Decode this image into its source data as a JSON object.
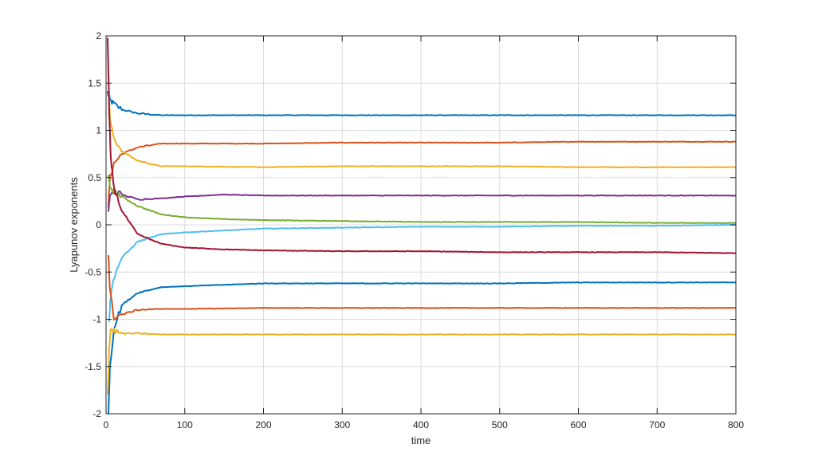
{
  "chart_data": {
    "type": "line",
    "title": "",
    "xlabel": "time",
    "ylabel": "Lyapunov exponents",
    "xlim": [
      0,
      800
    ],
    "ylim": [
      -2,
      2
    ],
    "xticks": [
      0,
      100,
      200,
      300,
      400,
      500,
      600,
      700,
      800
    ],
    "xtick_labels": [
      "0",
      "100",
      "200",
      "300",
      "400",
      "500",
      "600",
      "700",
      "800"
    ],
    "yticks": [
      -2,
      -1.5,
      -1,
      -0.5,
      0,
      0.5,
      1,
      1.5,
      2
    ],
    "ytick_labels": [
      "-2",
      "-1.5",
      "-1",
      "-0.5",
      "0",
      "0.5",
      "1",
      "1.5",
      "2"
    ],
    "grid": true,
    "legend": "none",
    "series": [
      {
        "color": "#0072bd",
        "x": [
          2,
          5,
          10,
          20,
          40,
          70,
          100,
          200,
          300,
          400,
          500,
          600,
          700,
          800
        ],
        "y": [
          1.4,
          1.32,
          1.28,
          1.22,
          1.18,
          1.16,
          1.16,
          1.16,
          1.16,
          1.16,
          1.16,
          1.16,
          1.16,
          1.16
        ]
      },
      {
        "color": "#d95319",
        "x": [
          3,
          5,
          10,
          20,
          40,
          70,
          100,
          200,
          300,
          400,
          500,
          600,
          700,
          800
        ],
        "y": [
          0.2,
          0.5,
          0.65,
          0.75,
          0.82,
          0.86,
          0.86,
          0.86,
          0.87,
          0.87,
          0.87,
          0.88,
          0.88,
          0.88
        ]
      },
      {
        "color": "#edb120",
        "x": [
          3,
          5,
          10,
          20,
          40,
          70,
          100,
          200,
          300,
          400,
          500,
          600,
          700,
          800
        ],
        "y": [
          1.6,
          1.1,
          0.92,
          0.78,
          0.68,
          0.62,
          0.62,
          0.61,
          0.62,
          0.62,
          0.62,
          0.61,
          0.61,
          0.61
        ]
      },
      {
        "color": "#7e2f8e",
        "x": [
          3,
          5,
          10,
          20,
          40,
          70,
          100,
          150,
          200,
          300,
          400,
          500,
          600,
          700,
          800
        ],
        "y": [
          0.15,
          0.3,
          0.35,
          0.32,
          0.27,
          0.28,
          0.3,
          0.32,
          0.31,
          0.31,
          0.31,
          0.31,
          0.31,
          0.31,
          0.31
        ]
      },
      {
        "color": "#77ac30",
        "x": [
          3,
          5,
          10,
          20,
          40,
          70,
          100,
          150,
          200,
          300,
          400,
          500,
          600,
          700,
          800
        ],
        "y": [
          0.5,
          0.4,
          0.36,
          0.3,
          0.2,
          0.11,
          0.08,
          0.06,
          0.05,
          0.04,
          0.03,
          0.03,
          0.03,
          0.02,
          0.02
        ]
      },
      {
        "color": "#4dbeee",
        "x": [
          4,
          6,
          10,
          20,
          40,
          70,
          100,
          150,
          200,
          300,
          400,
          500,
          600,
          700,
          800
        ],
        "y": [
          -1.0,
          -0.75,
          -0.55,
          -0.35,
          -0.18,
          -0.1,
          -0.08,
          -0.06,
          -0.04,
          -0.03,
          -0.02,
          -0.02,
          -0.01,
          -0.01,
          0.0
        ]
      },
      {
        "color": "#a2142f",
        "x": [
          2,
          4,
          6,
          10,
          20,
          40,
          70,
          100,
          150,
          200,
          300,
          400,
          500,
          600,
          700,
          800
        ],
        "y": [
          2.0,
          1.2,
          0.7,
          0.4,
          0.15,
          -0.1,
          -0.2,
          -0.24,
          -0.26,
          -0.27,
          -0.28,
          -0.28,
          -0.29,
          -0.29,
          -0.29,
          -0.3
        ]
      },
      {
        "color": "#0072bd",
        "x": [
          3,
          5,
          10,
          20,
          40,
          70,
          100,
          200,
          300,
          400,
          500,
          600,
          700,
          800
        ],
        "y": [
          -2.0,
          -1.5,
          -1.1,
          -0.85,
          -0.72,
          -0.66,
          -0.65,
          -0.62,
          -0.62,
          -0.62,
          -0.62,
          -0.61,
          -0.61,
          -0.61
        ]
      },
      {
        "color": "#d95319",
        "x": [
          3,
          5,
          10,
          20,
          40,
          70,
          100,
          200,
          300,
          400,
          500,
          600,
          700,
          800
        ],
        "y": [
          -0.3,
          -0.7,
          -0.98,
          -0.95,
          -0.9,
          -0.89,
          -0.89,
          -0.88,
          -0.88,
          -0.88,
          -0.88,
          -0.88,
          -0.88,
          -0.88
        ]
      },
      {
        "color": "#edb120",
        "x": [
          2,
          4,
          6,
          10,
          20,
          40,
          70,
          100,
          200,
          300,
          400,
          500,
          600,
          700,
          800
        ],
        "y": [
          -1.8,
          -1.3,
          -1.1,
          -1.12,
          -1.15,
          -1.15,
          -1.16,
          -1.16,
          -1.16,
          -1.16,
          -1.16,
          -1.16,
          -1.16,
          -1.16,
          -1.16
        ]
      }
    ]
  }
}
